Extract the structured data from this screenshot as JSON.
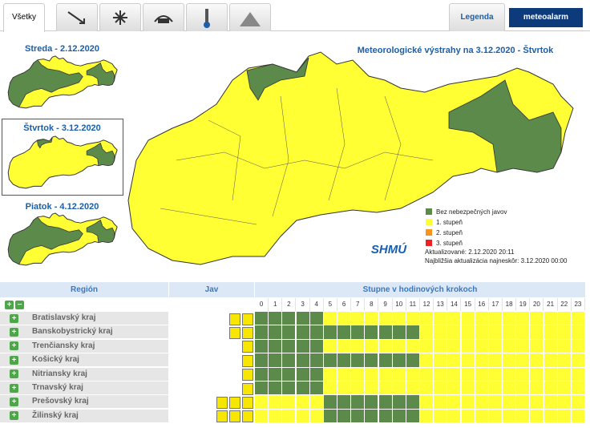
{
  "tabs": {
    "all": "Všetky",
    "legend": "Legenda",
    "logo": "meteoalarm"
  },
  "days": [
    "Streda - 2.12.2020",
    "Štvrtok - 3.12.2020",
    "Piatok - 4.12.2020"
  ],
  "map": {
    "title": "Meteorologické výstrahy na 3.12.2020 - Štvrtok",
    "legend": [
      {
        "label": "Bez nebezpečných javov",
        "color": "#5b8a4b"
      },
      {
        "label": "1. stupeň",
        "color": "#ffff33"
      },
      {
        "label": "2. stupeň",
        "color": "#f7941d"
      },
      {
        "label": "3. stupeň",
        "color": "#ee2222"
      }
    ],
    "logo": "SHMÚ",
    "updated": "Aktualizované: 2.12.2020 20:11",
    "next": "Najbližšia aktualizácia najneskôr: 3.12.2020 00:00"
  },
  "table": {
    "headers": [
      "Región",
      "Jav",
      "Stupne v hodinových krokoch"
    ],
    "hours": [
      0,
      1,
      2,
      3,
      4,
      5,
      6,
      7,
      8,
      9,
      10,
      11,
      12,
      13,
      14,
      15,
      16,
      17,
      18,
      19,
      20,
      21,
      22,
      23
    ],
    "rows": [
      {
        "region": "Bratislavský kraj",
        "levels": [
          0,
          0,
          0,
          0,
          0,
          1,
          1,
          1,
          1,
          1,
          1,
          1,
          1,
          1,
          1,
          1,
          1,
          1,
          1,
          1,
          1,
          1,
          1,
          1
        ]
      },
      {
        "region": "Banskobystrický kraj",
        "levels": [
          0,
          0,
          0,
          0,
          0,
          0,
          0,
          0,
          0,
          0,
          0,
          0,
          1,
          1,
          1,
          1,
          1,
          1,
          1,
          1,
          1,
          1,
          1,
          1
        ]
      },
      {
        "region": "Trenčiansky kraj",
        "levels": [
          0,
          0,
          0,
          0,
          0,
          1,
          1,
          1,
          1,
          1,
          1,
          1,
          1,
          1,
          1,
          1,
          1,
          1,
          1,
          1,
          1,
          1,
          1,
          1
        ]
      },
      {
        "region": "Košický kraj",
        "levels": [
          0,
          0,
          0,
          0,
          0,
          0,
          0,
          0,
          0,
          0,
          0,
          0,
          1,
          1,
          1,
          1,
          1,
          1,
          1,
          1,
          1,
          1,
          1,
          1
        ]
      },
      {
        "region": "Nitriansky kraj",
        "levels": [
          0,
          0,
          0,
          0,
          0,
          1,
          1,
          1,
          1,
          1,
          1,
          1,
          1,
          1,
          1,
          1,
          1,
          1,
          1,
          1,
          1,
          1,
          1,
          1
        ]
      },
      {
        "region": "Trnavský kraj",
        "levels": [
          0,
          0,
          0,
          0,
          0,
          1,
          1,
          1,
          1,
          1,
          1,
          1,
          1,
          1,
          1,
          1,
          1,
          1,
          1,
          1,
          1,
          1,
          1,
          1
        ]
      },
      {
        "region": "Prešovský kraj",
        "levels": [
          1,
          1,
          1,
          1,
          1,
          0,
          0,
          0,
          0,
          0,
          0,
          0,
          1,
          1,
          1,
          1,
          1,
          1,
          1,
          1,
          1,
          1,
          1,
          1
        ]
      },
      {
        "region": "Žilinský kraj",
        "levels": [
          1,
          1,
          1,
          1,
          1,
          0,
          0,
          0,
          0,
          0,
          0,
          0,
          1,
          1,
          1,
          1,
          1,
          1,
          1,
          1,
          1,
          1,
          1,
          1
        ]
      }
    ]
  }
}
